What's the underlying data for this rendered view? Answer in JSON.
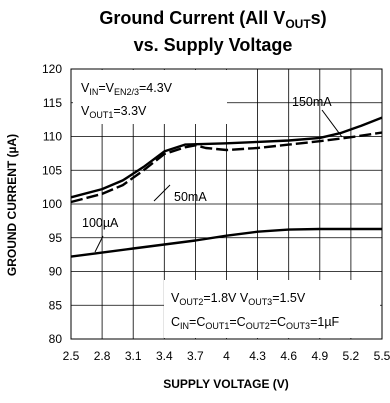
{
  "chart_data": {
    "type": "line",
    "title_line1": "Ground Current (All V",
    "title_line1_sub": "OUT",
    "title_line1_end": "s)",
    "title_line2": "vs. Supply Voltage",
    "xlabel": "SUPPLY VOLTAGE (V)",
    "ylabel": "GROUND CURRENT (µA)",
    "xlim": [
      2.5,
      5.5
    ],
    "ylim": [
      80,
      120
    ],
    "x_ticks": [
      "2.5",
      "2.8",
      "3.1",
      "3.4",
      "3.7",
      "4",
      "4.3",
      "4.6",
      "4.9",
      "5.2",
      "5.5"
    ],
    "y_ticks": [
      "80",
      "85",
      "90",
      "95",
      "100",
      "105",
      "110",
      "115",
      "120"
    ],
    "grid": true,
    "series": [
      {
        "name": "150mA",
        "style": "solid",
        "color": "#000000",
        "x": [
          2.5,
          2.8,
          3.0,
          3.2,
          3.4,
          3.6,
          3.8,
          4.0,
          4.3,
          4.6,
          4.9,
          5.1,
          5.3,
          5.5
        ],
        "y": [
          101.0,
          102.2,
          103.5,
          105.5,
          107.8,
          108.8,
          108.9,
          109.0,
          109.2,
          109.4,
          109.8,
          110.5,
          111.6,
          112.8
        ]
      },
      {
        "name": "50mA",
        "style": "dashed",
        "color": "#000000",
        "x": [
          2.5,
          2.8,
          3.0,
          3.2,
          3.4,
          3.6,
          3.7,
          3.8,
          4.0,
          4.3,
          4.6,
          4.9,
          5.2,
          5.5
        ],
        "y": [
          100.3,
          101.5,
          102.8,
          105.0,
          107.4,
          108.4,
          108.7,
          108.3,
          108.0,
          108.3,
          108.8,
          109.3,
          109.9,
          110.6
        ]
      },
      {
        "name": "100µA",
        "style": "solid",
        "color": "#000000",
        "x": [
          2.5,
          2.8,
          3.1,
          3.4,
          3.7,
          4.0,
          4.3,
          4.6,
          4.9,
          5.2,
          5.5
        ],
        "y": [
          92.2,
          92.8,
          93.4,
          94.0,
          94.6,
          95.3,
          95.9,
          96.2,
          96.3,
          96.3,
          96.3
        ]
      }
    ],
    "annotations": {
      "top_left_line1": [
        {
          "t": "V",
          "sub": false
        },
        {
          "t": "IN",
          "sub": true
        },
        {
          "t": "=V",
          "sub": false
        },
        {
          "t": "EN2/3",
          "sub": true
        },
        {
          "t": "=4.3V",
          "sub": false
        }
      ],
      "top_left_line2": [
        {
          "t": "V",
          "sub": false
        },
        {
          "t": "OUT1",
          "sub": true
        },
        {
          "t": "=3.3V",
          "sub": false
        }
      ],
      "bottom_line1": [
        {
          "t": "V",
          "sub": false
        },
        {
          "t": "OUT2",
          "sub": true
        },
        {
          "t": "=1.8V  V",
          "sub": false
        },
        {
          "t": "OUT3",
          "sub": true
        },
        {
          "t": "=1.5V",
          "sub": false
        }
      ],
      "bottom_line2": [
        {
          "t": "C",
          "sub": false
        },
        {
          "t": "IN",
          "sub": true
        },
        {
          "t": "=C",
          "sub": false
        },
        {
          "t": "OUT1",
          "sub": true
        },
        {
          "t": "=C",
          "sub": false
        },
        {
          "t": "OUT2",
          "sub": true
        },
        {
          "t": "=C",
          "sub": false
        },
        {
          "t": "OUT3",
          "sub": true
        },
        {
          "t": "=1µF",
          "sub": false
        }
      ],
      "label_150mA": "150mA",
      "label_50mA": "50mA",
      "label_100uA": "100µA"
    }
  }
}
